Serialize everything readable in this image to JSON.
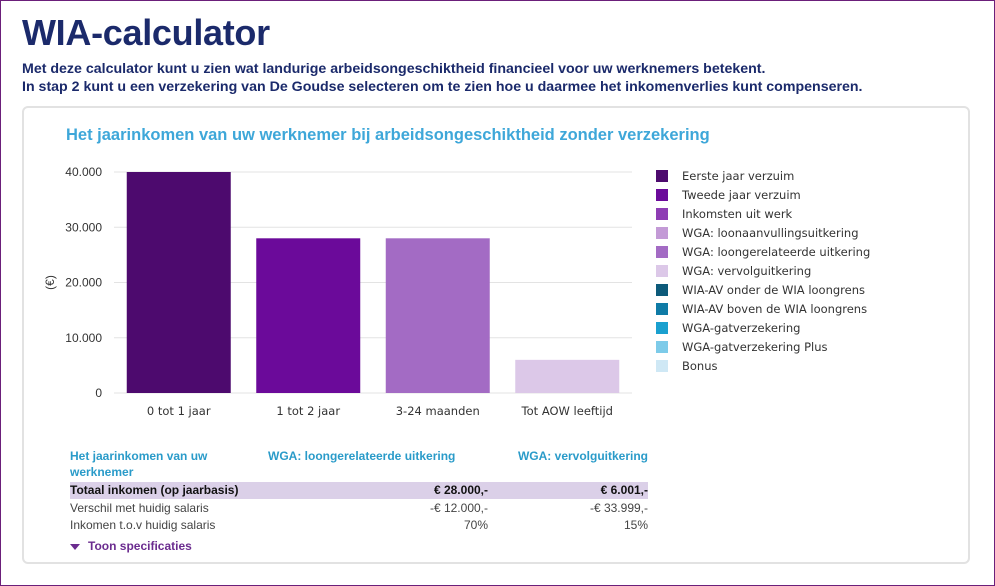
{
  "page": {
    "title": "WIA-calculator",
    "intro_line1": "Met deze calculator kunt u zien wat landurige arbeidsongeschiktheid financieel voor uw werknemers betekent.",
    "intro_line2": "In stap 2 kunt u een verzekering van De Goudse selecteren om te zien hoe u daarmee het inkomenverlies kunt compenseren."
  },
  "card": {
    "title": "Het jaarinkomen van uw werknemer bij arbeidsongeschiktheid zonder verzekering"
  },
  "chart_data": {
    "type": "bar",
    "categories": [
      "0 tot 1 jaar",
      "1 tot 2 jaar",
      "3-24 maanden",
      "Tot AOW leeftijd"
    ],
    "values": [
      40000,
      28000,
      28000,
      6001
    ],
    "bar_colors": [
      "#4d0a6e",
      "#6b0a9a",
      "#a36bc4",
      "#dcc8e8"
    ],
    "ylabel": "(€)",
    "ylim": [
      0,
      40000
    ],
    "yticks": [
      0,
      10000,
      20000,
      30000,
      40000
    ],
    "ytick_labels": [
      "0",
      "10.000",
      "20.000",
      "30.000",
      "40.000"
    ],
    "grid": true,
    "legend_position": "right"
  },
  "legend": {
    "items": [
      {
        "label": "Eerste jaar verzuim",
        "color": "#4d0a6e"
      },
      {
        "label": "Tweede jaar verzuim",
        "color": "#6b0a9a"
      },
      {
        "label": "Inkomsten uit werk",
        "color": "#8e3db4"
      },
      {
        "label": "WGA: loonaanvullingsuitkering",
        "color": "#c39ad6"
      },
      {
        "label": "WGA: loongerelateerde uitkering",
        "color": "#a36bc4"
      },
      {
        "label": "WGA: vervolguitkering",
        "color": "#dcc8e8"
      },
      {
        "label": "WIA-AV onder de WIA loongrens",
        "color": "#0d5a7a"
      },
      {
        "label": "WIA-AV boven de WIA loongrens",
        "color": "#0f7ba6"
      },
      {
        "label": "WGA-gatverzekering",
        "color": "#1aa0cf"
      },
      {
        "label": "WGA-gatverzekering Plus",
        "color": "#7dcbe9"
      },
      {
        "label": "Bonus",
        "color": "#cfe8f5"
      }
    ]
  },
  "table": {
    "header_col0": "Het jaarinkomen van uw werknemer",
    "header_col1": "WGA: loongerelateerde uitkering",
    "header_col2": "WGA: vervolguitkering",
    "rows": [
      {
        "label": "Totaal inkomen (op jaarbasis)",
        "v1": "€ 28.000,-",
        "v2": "€ 6.001,-"
      },
      {
        "label": "Verschil met huidig salaris",
        "v1": "-€ 12.000,-",
        "v2": "-€ 33.999,-"
      },
      {
        "label": "Inkomen t.o.v huidig salaris",
        "v1": "70%",
        "v2": "15%"
      }
    ],
    "toggle_label": "Toon specificaties"
  }
}
